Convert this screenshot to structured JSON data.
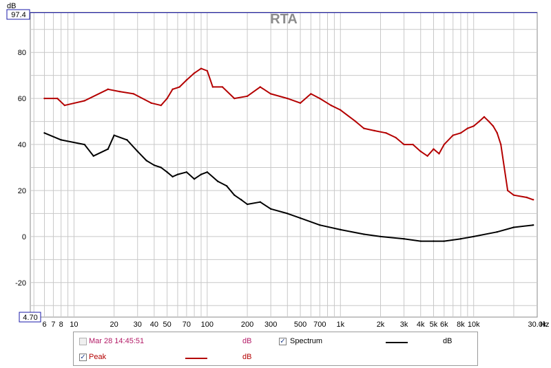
{
  "chart_data": {
    "type": "line",
    "title": "RTA",
    "ylabel": "dB",
    "xlabel": "Hz",
    "x_scale": "log",
    "xlim": [
      4.7,
      30000
    ],
    "ylim": [
      -35,
      97.4
    ],
    "y_top_readout": "97.4",
    "x_left_readout": "4.70",
    "y_ticks": [
      -20,
      0,
      20,
      40,
      60,
      80
    ],
    "y_tick_labels": [
      "-20",
      "0",
      "20",
      "40",
      "60",
      "80"
    ],
    "x_ticks": [
      6,
      7,
      8,
      10,
      20,
      30,
      40,
      50,
      70,
      100,
      200,
      300,
      500,
      700,
      1000,
      2000,
      3000,
      4000,
      5000,
      6000,
      8000,
      10000,
      30000
    ],
    "x_tick_labels": [
      "6",
      "7",
      "8",
      "10",
      "20",
      "30",
      "40",
      "50",
      "70",
      "100",
      "200",
      "300",
      "500",
      "700",
      "1k",
      "2k",
      "3k",
      "4k",
      "5k",
      "6k",
      "8k",
      "10k",
      "30.0k"
    ],
    "grid": true,
    "series": [
      {
        "name": "Peak",
        "color": "#b40000",
        "unit": "dB",
        "x": [
          6,
          7.5,
          8.5,
          12,
          18,
          22,
          28,
          38,
          45,
          50,
          55,
          62,
          70,
          80,
          90,
          100,
          110,
          130,
          160,
          200,
          250,
          300,
          400,
          500,
          600,
          700,
          850,
          1000,
          1300,
          1500,
          1800,
          2200,
          2600,
          3000,
          3500,
          4000,
          4500,
          5000,
          5500,
          6000,
          7000,
          8000,
          9000,
          10000,
          11000,
          12000,
          13000,
          14000,
          15000,
          16000,
          18000,
          20000,
          25000,
          28000
        ],
        "y": [
          60,
          60,
          57,
          59,
          64,
          63,
          62,
          58,
          57,
          60,
          64,
          65,
          68,
          71,
          73,
          72,
          65,
          65,
          60,
          61,
          65,
          62,
          60,
          58,
          62,
          60,
          57,
          55,
          50,
          47,
          46,
          45,
          43,
          40,
          40,
          37,
          35,
          38,
          36,
          40,
          44,
          45,
          47,
          48,
          50,
          52,
          50,
          48,
          45,
          40,
          20,
          18,
          17,
          16
        ]
      },
      {
        "name": "Spectrum",
        "color": "#000000",
        "unit": "dB",
        "x": [
          6,
          8,
          12,
          14,
          18,
          20,
          25,
          30,
          35,
          40,
          45,
          50,
          55,
          60,
          70,
          80,
          90,
          100,
          120,
          140,
          160,
          180,
          200,
          250,
          300,
          400,
          500,
          700,
          1000,
          1500,
          2000,
          3000,
          4000,
          5000,
          6000,
          8000,
          10000,
          15000,
          20000,
          28000
        ],
        "y": [
          45,
          42,
          40,
          35,
          38,
          44,
          42,
          37,
          33,
          31,
          30,
          28,
          26,
          27,
          28,
          25,
          27,
          28,
          24,
          22,
          18,
          16,
          14,
          15,
          12,
          10,
          8,
          5,
          3,
          1,
          0,
          -1,
          -2,
          -2,
          -2,
          -1,
          0,
          2,
          4,
          5
        ]
      }
    ]
  },
  "legend": {
    "item1_label": "Mar 28 14:45:51",
    "item1_unit": "dB",
    "item2_label": "Spectrum",
    "item2_unit": "dB",
    "item3_label": "Peak",
    "item3_unit": "dB",
    "check_mark": "✓",
    "item1_color": "#b31a66"
  }
}
